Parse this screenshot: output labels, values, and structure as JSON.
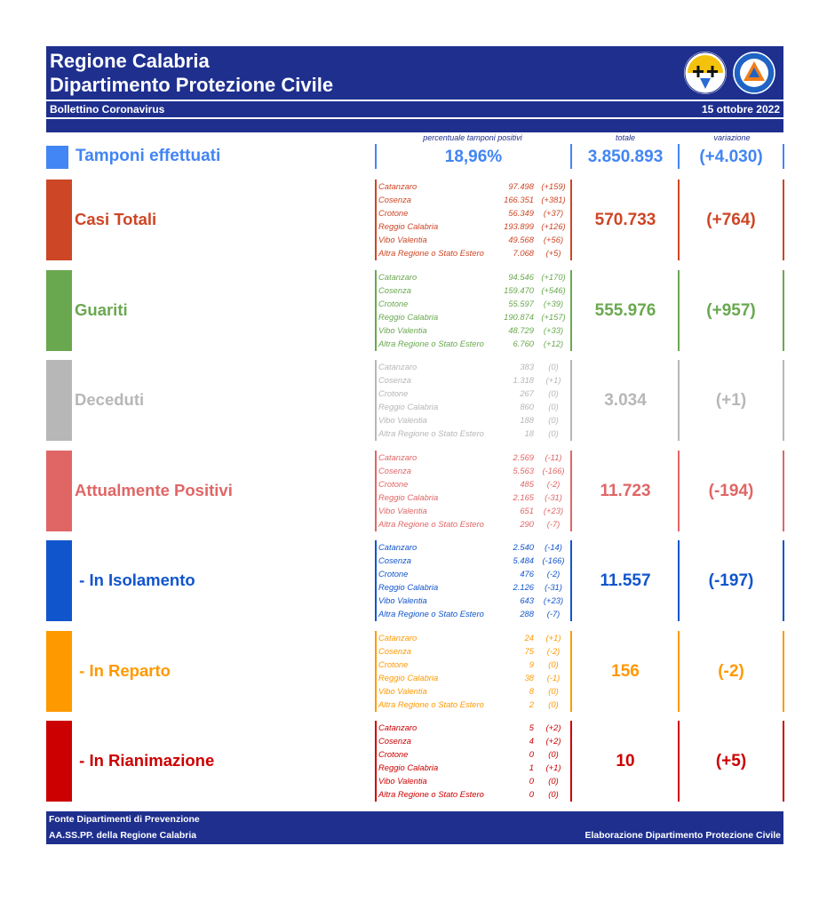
{
  "header": {
    "title_line1": "Regione Calabria",
    "title_line2": "Dipartimento Protezione Civile",
    "subtitle_left": "Bollettino Coronavirus",
    "date": "15 ottobre 2022",
    "logo2_text": "PROTEZIONE CIVILE"
  },
  "captions": {
    "perc": "percentuale tamponi positivi",
    "totale": "totale",
    "variazione": "variazione"
  },
  "tamponi": {
    "label": "Tamponi effettuati",
    "percentuale": "18,96%",
    "totale": "3.850.893",
    "variazione": "(+4.030)",
    "color": "#4285f4"
  },
  "sections": [
    {
      "key": "casi_totali",
      "label": "Casi Totali",
      "color": "#cd4625",
      "totale": "570.733",
      "variazione": "(+764)",
      "rows": [
        {
          "name": "Catanzaro",
          "value": "97.498",
          "change": "(+159)"
        },
        {
          "name": "Cosenza",
          "value": "166.351",
          "change": "(+381)"
        },
        {
          "name": "Crotone",
          "value": "56.349",
          "change": "(+37)"
        },
        {
          "name": "Reggio Calabria",
          "value": "193.899",
          "change": "(+126)"
        },
        {
          "name": "Vibo Valentia",
          "value": "49.568",
          "change": "(+56)"
        },
        {
          "name": "Altra Regione o Stato Estero",
          "value": "7.068",
          "change": "(+5)"
        }
      ]
    },
    {
      "key": "guariti",
      "label": "Guariti",
      "color": "#6aa84f",
      "totale": "555.976",
      "variazione": "(+957)",
      "rows": [
        {
          "name": "Catanzaro",
          "value": "94.546",
          "change": "(+170)"
        },
        {
          "name": "Cosenza",
          "value": "159.470",
          "change": "(+546)"
        },
        {
          "name": "Crotone",
          "value": "55.597",
          "change": "(+39)"
        },
        {
          "name": "Reggio Calabria",
          "value": "190.874",
          "change": "(+157)"
        },
        {
          "name": "Vibo Valentia",
          "value": "48.729",
          "change": "(+33)"
        },
        {
          "name": "Altra Regione o Stato Estero",
          "value": "6.760",
          "change": "(+12)"
        }
      ]
    },
    {
      "key": "deceduti",
      "label": "Deceduti",
      "color": "#b7b7b7",
      "totale": "3.034",
      "variazione": "(+1)",
      "rows": [
        {
          "name": "Catanzaro",
          "value": "383",
          "change": "(0)"
        },
        {
          "name": "Cosenza",
          "value": "1.318",
          "change": "(+1)"
        },
        {
          "name": "Crotone",
          "value": "267",
          "change": "(0)"
        },
        {
          "name": "Reggio Calabria",
          "value": "860",
          "change": "(0)"
        },
        {
          "name": "Vibo Valentia",
          "value": "188",
          "change": "(0)"
        },
        {
          "name": "Altra Regione o Stato Estero",
          "value": "18",
          "change": "(0)"
        }
      ]
    },
    {
      "key": "attualmente_positivi",
      "label": "Attualmente Positivi",
      "color": "#e06666",
      "totale": "11.723",
      "variazione": "(-194)",
      "rows": [
        {
          "name": "Catanzaro",
          "value": "2.569",
          "change": "(-11)"
        },
        {
          "name": "Cosenza",
          "value": "5.563",
          "change": "(-166)"
        },
        {
          "name": "Crotone",
          "value": "485",
          "change": "(-2)"
        },
        {
          "name": "Reggio Calabria",
          "value": "2.165",
          "change": "(-31)"
        },
        {
          "name": "Vibo Valentia",
          "value": "651",
          "change": "(+23)"
        },
        {
          "name": "Altra Regione o Stato Estero",
          "value": "290",
          "change": "(-7)"
        }
      ]
    },
    {
      "key": "isolamento",
      "label": " - In Isolamento",
      "color": "#1155cc",
      "totale": "11.557",
      "variazione": "(-197)",
      "rows": [
        {
          "name": "Catanzaro",
          "value": "2.540",
          "change": "(-14)"
        },
        {
          "name": "Cosenza",
          "value": "5.484",
          "change": "(-166)"
        },
        {
          "name": "Crotone",
          "value": "476",
          "change": "(-2)"
        },
        {
          "name": "Reggio Calabria",
          "value": "2.126",
          "change": "(-31)"
        },
        {
          "name": "Vibo Valentia",
          "value": "643",
          "change": "(+23)"
        },
        {
          "name": "Altra Regione o Stato Estero",
          "value": "288",
          "change": "(-7)"
        }
      ]
    },
    {
      "key": "reparto",
      "label": " - In Reparto",
      "color": "#ff9900",
      "totale": "156",
      "variazione": "(-2)",
      "rows": [
        {
          "name": "Catanzaro",
          "value": "24",
          "change": "(+1)"
        },
        {
          "name": "Cosenza",
          "value": "75",
          "change": "(-2)"
        },
        {
          "name": "Crotone",
          "value": "9",
          "change": "(0)"
        },
        {
          "name": "Reggio Calabria",
          "value": "38",
          "change": "(-1)"
        },
        {
          "name": "Vibo Valentia",
          "value": "8",
          "change": "(0)"
        },
        {
          "name": "Altra Regione o Stato Estero",
          "value": "2",
          "change": "(0)"
        }
      ]
    },
    {
      "key": "rianimazione",
      "label": " - In Rianimazione",
      "color": "#cc0000",
      "totale": "10",
      "variazione": "(+5)",
      "rows": [
        {
          "name": "Catanzaro",
          "value": "5",
          "change": "(+2)"
        },
        {
          "name": "Cosenza",
          "value": "4",
          "change": "(+2)"
        },
        {
          "name": "Crotone",
          "value": "0",
          "change": "(0)"
        },
        {
          "name": "Reggio Calabria",
          "value": "1",
          "change": "(+1)"
        },
        {
          "name": "Vibo Valentia",
          "value": "0",
          "change": "(0)"
        },
        {
          "name": "Altra Regione o Stato Estero",
          "value": "0",
          "change": "(0)"
        }
      ]
    }
  ],
  "footer": {
    "left_line1": "Fonte Dipartimenti di Prevenzione",
    "left_line2": "AA.SS.PP.  della Regione Calabria",
    "right": "Elaborazione Dipartimento Protezione Civile"
  }
}
